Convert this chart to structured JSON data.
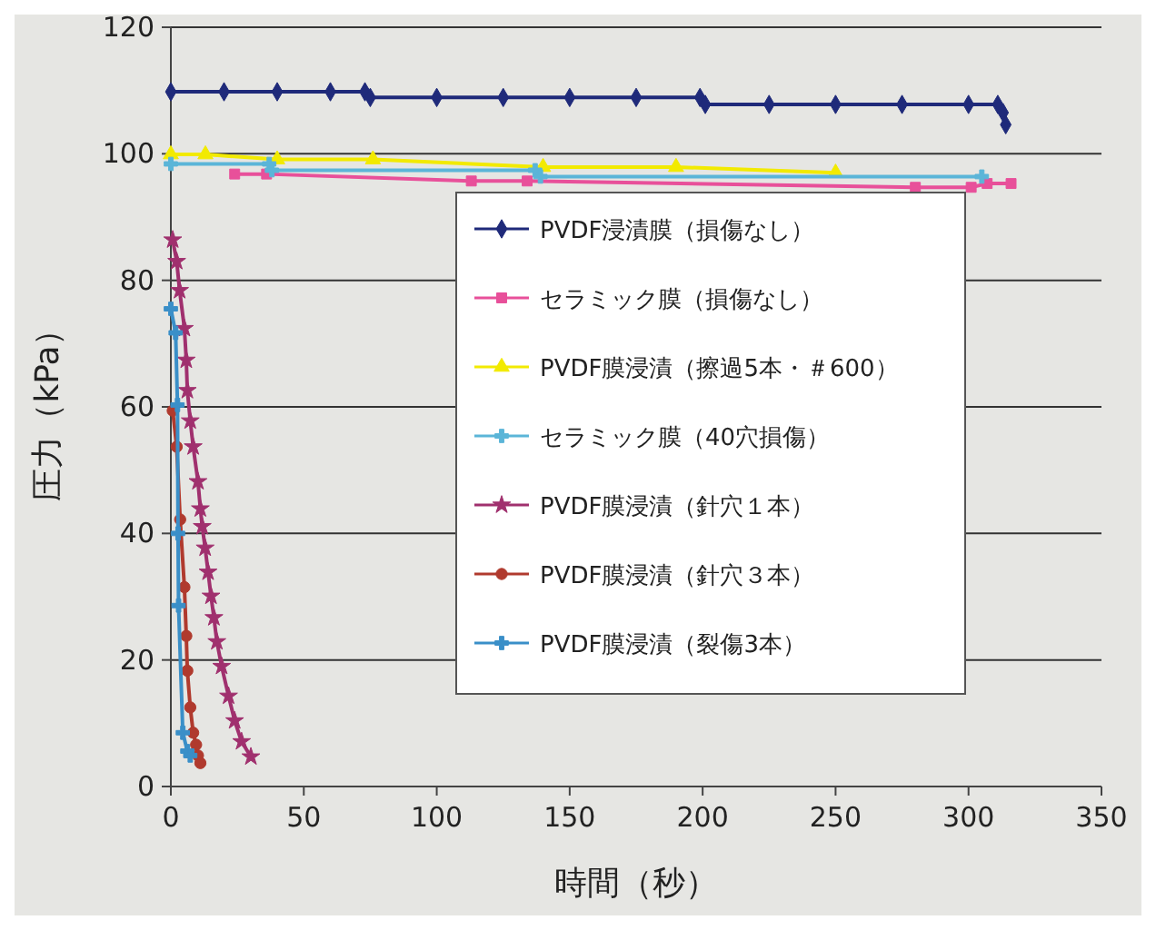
{
  "chart_data": {
    "type": "line",
    "xlabel": "時間（秒）",
    "ylabel": "圧力（kPa）",
    "xlim": [
      0,
      350
    ],
    "xticks": [
      0,
      50,
      100,
      150,
      200,
      250,
      300,
      350
    ],
    "ylim": [
      0,
      120
    ],
    "yticks": [
      0,
      20,
      40,
      60,
      80,
      100,
      120
    ],
    "grid": "y",
    "legend": "right",
    "series": [
      {
        "name": "PVDF浸漬膜（損傷なし）",
        "color": "#1f2a7a",
        "marker": "diamond",
        "x": [
          0,
          20,
          40,
          60,
          73,
          75,
          100,
          125,
          150,
          175,
          199,
          201,
          225,
          250,
          275,
          300,
          311,
          313,
          314
        ],
        "values": [
          109.8,
          109.8,
          109.8,
          109.8,
          109.8,
          108.9,
          108.9,
          108.9,
          108.9,
          108.9,
          108.9,
          107.8,
          107.8,
          107.8,
          107.8,
          107.8,
          107.8,
          106.5,
          104.6
        ]
      },
      {
        "name": "セラミック膜（損傷なし）",
        "color": "#e8509a",
        "marker": "square",
        "x": [
          24,
          36,
          113,
          134,
          280,
          301,
          307,
          316
        ],
        "values": [
          96.8,
          96.8,
          95.7,
          95.7,
          94.7,
          94.7,
          95.3,
          95.3
        ]
      },
      {
        "name": "PVDF膜浸漬（擦過5本・＃600）",
        "color": "#f2ea00",
        "marker": "triangle",
        "x": [
          0,
          13,
          40,
          76,
          140,
          190,
          250
        ],
        "values": [
          99.9,
          99.9,
          99.1,
          99.1,
          97.9,
          97.9,
          97.0
        ]
      },
      {
        "name": "セラミック膜（40穴損傷）",
        "color": "#5bb5d8",
        "marker": "cross",
        "x": [
          0,
          37,
          38,
          137,
          139,
          305
        ],
        "values": [
          98.4,
          98.4,
          97.4,
          97.4,
          96.4,
          96.4
        ]
      },
      {
        "name": "PVDF膜浸漬（針穴１本）",
        "color": "#a0306e",
        "marker": "star",
        "x": [
          0.7,
          2.2,
          3.3,
          5.1,
          5.8,
          6.2,
          7.3,
          8.4,
          10.2,
          11.1,
          11.8,
          12.9,
          14,
          15.1,
          16.2,
          17.3,
          19.1,
          21.7,
          24,
          26.6,
          30.1
        ],
        "values": [
          86.4,
          83.0,
          78.4,
          72.4,
          67.4,
          62.6,
          57.8,
          53.7,
          48.2,
          43.9,
          41.1,
          37.7,
          33.9,
          30.1,
          26.7,
          22.9,
          19.0,
          14.3,
          10.4,
          7.1,
          4.7
        ]
      },
      {
        "name": "PVDF膜浸漬（針穴３本）",
        "color": "#b03a2e",
        "marker": "circle",
        "x": [
          0.7,
          2.2,
          3.5,
          5.1,
          5.8,
          6.2,
          7.3,
          8.4,
          9.5,
          10.2,
          11.1
        ],
        "values": [
          59.4,
          53.7,
          42.2,
          31.5,
          23.8,
          18.3,
          12.5,
          8.5,
          6.6,
          4.9,
          3.7
        ]
      },
      {
        "name": "PVDF膜浸漬（裂傷3本）",
        "color": "#3a8fc8",
        "marker": "cross",
        "x": [
          0,
          1.8,
          2.5,
          2.7,
          2.9,
          4.5,
          6.2,
          7.3
        ],
        "values": [
          75.5,
          71.7,
          60.3,
          40,
          28.6,
          8.5,
          5.6,
          4.9
        ]
      }
    ]
  }
}
